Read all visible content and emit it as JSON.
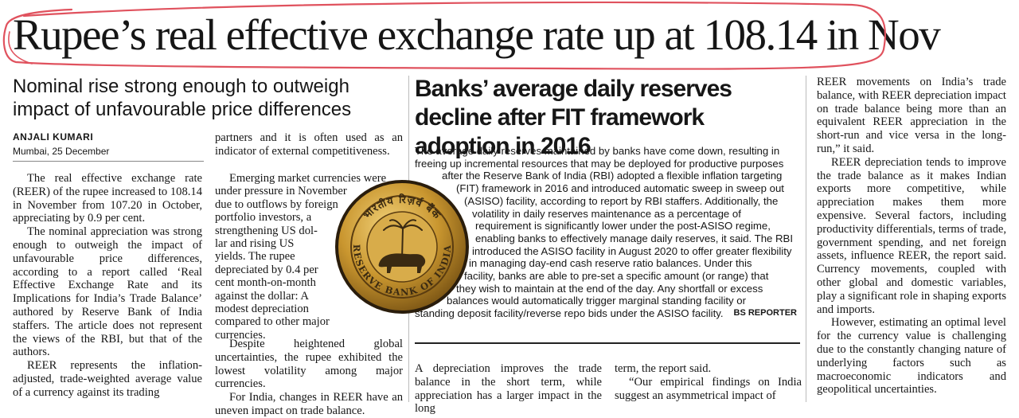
{
  "headline": "Rupee’s real effective exchange rate up at 108.14 in Nov",
  "subhead": "Nominal rise strong enough to outweigh impact of unfavourable price differences",
  "byline": "ANJALI KUMARI",
  "dateline": "Mumbai, 25 December",
  "col1": [
    "The real effective exchange rate (REER) of the rupee increased to 108.14 in November from 107.20 in October, appreciating by 0.9 per cent.",
    "The nominal appreciation was strong enough to outweigh the impact of unfavourable price differences, according to a report called ‘Real Effective Exchange Rate and its Implications for India’s Trade Balance’ authored by Reserve Bank of India staffers. The article does not represent the views of the RBI, but that of the authors.",
    "REER represents the inflation-adjusted, trade-weighted average value of a currency against its trading"
  ],
  "col2_top": "partners and it is often used as an indicator of external competitiveness.",
  "col2_mid_lines": [
    "Emerging market currencies were",
    "under pressure in November",
    "due to outflows by foreign",
    "portfolio investors, a",
    "strengthening US dol-",
    "lar and rising US",
    "yields. The rupee",
    "depreciated by 0.4 per",
    "cent month-on-month",
    "against the dollar: A",
    "modest depreciation",
    "compared to other major",
    "currencies."
  ],
  "col2_bottom": [
    "Despite heightened global uncertainties, the rupee exhibited the lowest volatility among major currencies.",
    "For India, changes in REER have an uneven impact on trade balance."
  ],
  "box_title": "Banks’ average daily reserves decline after FIT framework adoption in 2016",
  "box_lines": [
    "The average daily reserves maintained by banks have come down, resulting in",
    "freeing up incremental resources that may be deployed for productive purposes",
    "after the Reserve Bank of India (RBI) adopted a flexible inflation targeting",
    "(FIT) framework in 2016 and introduced automatic sweep in sweep out",
    "(ASISO) facility, according to report by RBI staffers. Additionally, the",
    "volatility in daily reserves maintenance as a percentage of",
    "requirement is significantly lower under the post-ASISO regime,",
    "enabling banks to effectively manage daily reserves, it said. The RBI",
    "introduced the ASISO facility in August 2020 to offer greater flexibility",
    "in managing day-end cash reserve ratio balances. Under this",
    "facility, banks are able to pre-set a specific amount (or range) that",
    "they wish to maintain at the end of the day. Any shortfall or excess",
    "balances would automatically trigger marginal standing facility or",
    "standing deposit facility/reverse repo bids under the ASISO facility."
  ],
  "box_credit": "BS REPORTER",
  "col3a": "A depreciation improves the trade balance in the short term, while appreciation has a larger impact in the long",
  "col3b": [
    "term, the report said.",
    "“Our empirical findings on India suggest an asymmetrical impact of"
  ],
  "col4": [
    "REER movements on India’s trade balance, with REER depreciation impact on trade balance being more than an equivalent REER appreciation in the short-run and vice versa in the long-run,” it said.",
    "REER depreciation tends to improve the trade balance as it makes Indian exports more competitive, while appreciation makes them more expensive. Several factors, including productivity differentials, terms of trade, government spending, and net foreign assets, influence REER, the report said. Currency movements, coupled with other global and domestic variables, play a significant role in shaping exports and imports.",
    "However, estimating an optimal level for the currency value is challenging due to the constantly changing nature of underlying factors such as macroeconomic indicators and geopolitical uncertainties."
  ],
  "seal": {
    "top_text": "भारतीय रिज़र्व बैंक",
    "bottom_text": "RESERVE BANK OF INDIA"
  },
  "colors": {
    "highlight_red": "#e0525e",
    "seal_gold": "#c9962f",
    "seal_dark": "#3a2a12"
  }
}
